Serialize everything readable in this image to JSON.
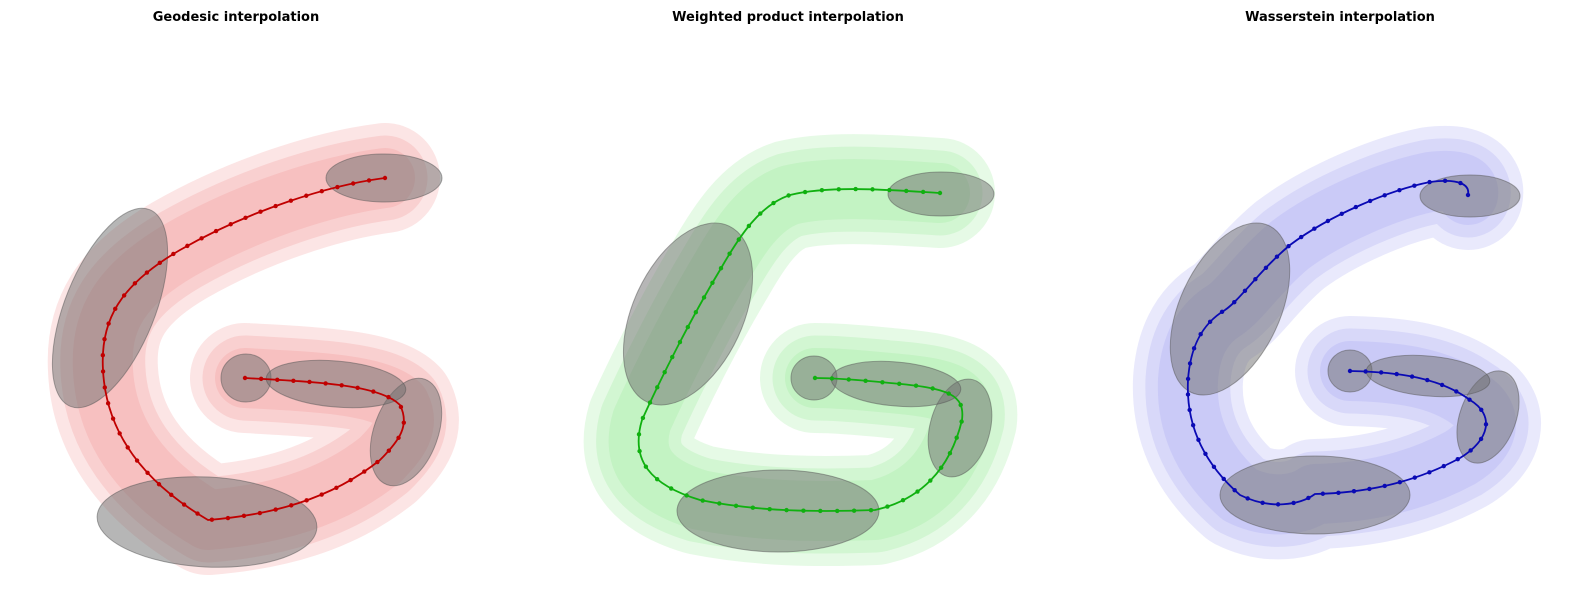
{
  "panels": [
    {
      "title": "Geodesic interpolation"
    },
    {
      "title": "Weighted product interpolation"
    },
    {
      "title": "Wasserstein interpolation"
    }
  ]
}
